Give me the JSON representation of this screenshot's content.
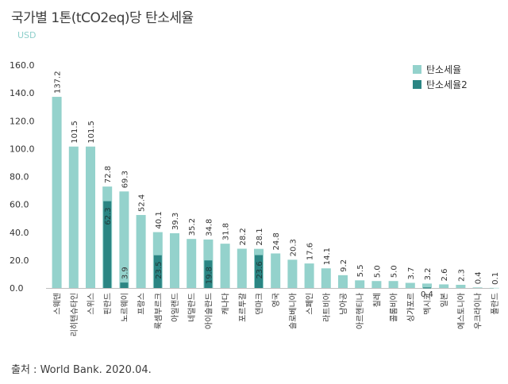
{
  "chart_data": {
    "type": "bar",
    "title": "국가별 1톤(tCO2eq)당 탄소세율",
    "unit": "USD",
    "ylim": [
      0,
      160
    ],
    "yticks": [
      "0.0",
      "20.0",
      "40.0",
      "60.0",
      "80.0",
      "100.0",
      "120.0",
      "140.0",
      "160.0"
    ],
    "categories": [
      "스웨덴",
      "리히텐슈타인",
      "스위스",
      "핀란드",
      "노르웨이",
      "프랑스",
      "룩셈부르크",
      "아일랜드",
      "네덜란드",
      "아이슬란드",
      "캐나다",
      "포르투갈",
      "덴마크",
      "영국",
      "슬로베니아",
      "스페인",
      "라트비아",
      "남아공",
      "아르헨티나",
      "칠레",
      "콜롬비아",
      "싱가포르",
      "멕시코",
      "일본",
      "에스토니아",
      "우크라이나",
      "폴란드"
    ],
    "series": [
      {
        "name": "탄소세율",
        "color": "#94d2cc",
        "values": [
          137.2,
          101.5,
          101.5,
          72.8,
          69.3,
          52.4,
          40.1,
          39.3,
          35.2,
          34.8,
          31.8,
          28.2,
          28.1,
          24.8,
          20.3,
          17.6,
          14.1,
          9.2,
          5.5,
          5.0,
          5.0,
          3.7,
          3.2,
          2.6,
          2.3,
          0.4,
          0.1
        ],
        "labels": [
          "137.2",
          "101.5",
          "101.5",
          "72.8",
          "69.3",
          "52.4",
          "40.1",
          "39.3",
          "35.2",
          "34.8",
          "31.8",
          "28.2",
          "28.1",
          "24.8",
          "20.3",
          "17.6",
          "14.1",
          "9.2",
          "5.5",
          "5.0",
          "5.0",
          "3.7",
          "3.2",
          "2.6",
          "2.3",
          "0.4",
          "0.1"
        ]
      },
      {
        "name": "탄소세율2",
        "color": "#2b8583",
        "values": [
          null,
          null,
          null,
          62.3,
          3.9,
          null,
          23.5,
          null,
          null,
          19.8,
          null,
          null,
          23.6,
          null,
          null,
          null,
          null,
          null,
          null,
          null,
          null,
          null,
          0.4,
          null,
          null,
          null,
          null
        ],
        "labels": [
          null,
          null,
          null,
          "62.3",
          "3.9",
          null,
          "23.5",
          null,
          null,
          "19.8",
          null,
          null,
          "23.6",
          null,
          null,
          null,
          null,
          null,
          null,
          null,
          null,
          null,
          "0.4",
          null,
          null,
          null,
          null
        ]
      }
    ],
    "legend": [
      "탄소세율",
      "탄소세율2"
    ],
    "source": "출처 : World Bank. 2020.04."
  }
}
